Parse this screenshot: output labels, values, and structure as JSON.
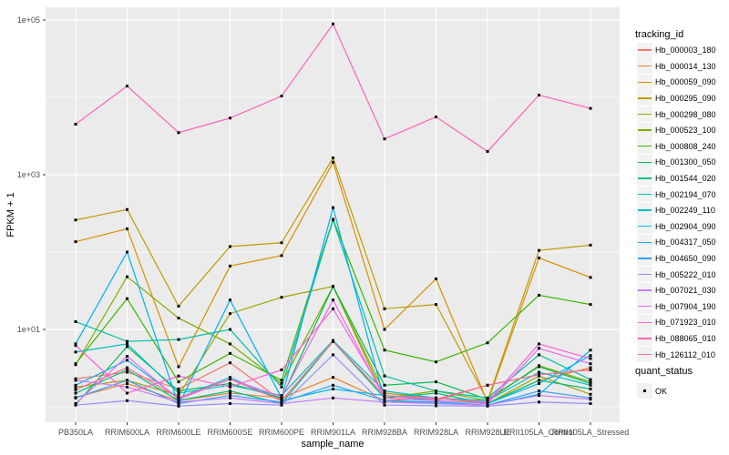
{
  "figure": {
    "background": "#FFFFFF",
    "panel_background": "#EBEBEB",
    "gridline_color": "#FFFFFF",
    "axis_text_color": "#4D4D4D",
    "tick_mark_color": "#333333",
    "axis_title_color": "#000000",
    "legend_key_background": "#F2F2F2",
    "point_color": "#000000"
  },
  "chart_data": {
    "type": "line",
    "title": "",
    "xlabel": "sample_name",
    "ylabel": "FPKM + 1",
    "y_scale": "log10",
    "grid": "on",
    "legend_position": "right",
    "points_style": "black square marker at every vertex",
    "y_ticks": [
      {
        "label": "1e+05",
        "value": 100000
      },
      {
        "label": "1e+03",
        "value": 1000
      },
      {
        "label": "1e+01",
        "value": 10
      }
    ],
    "y_minor_breaks": [
      1,
      100,
      10000
    ],
    "ylim_log10": [
      -0.2,
      5.16
    ],
    "categories": [
      "PB350LA",
      "RRIM600LA",
      "RRIM600LE",
      "RRIM600SE",
      "RRIM600PE",
      "RRIM901LA",
      "RRIM928BA",
      "RRIM928LA",
      "RRIM928LE",
      "RRII105LA_Control",
      "RRII105LA_Stressed"
    ],
    "legend": {
      "title": "tracking_id",
      "secondary_title": "quant_status",
      "secondary_items": [
        {
          "label": "OK",
          "marker": "black-square"
        }
      ]
    },
    "series": [
      {
        "name": "Hb_000003_180",
        "color": "#F8766D",
        "values": [
          2.3,
          2.8,
          1.7,
          3.7,
          1.2,
          7,
          1.3,
          1.2,
          1.9,
          2.6,
          3.0
        ]
      },
      {
        "name": "Hb_000014_130",
        "color": "#EA8331",
        "values": [
          1.32,
          2.0,
          1.2,
          1.5,
          1.3,
          2.4,
          1.2,
          1.3,
          1.1,
          2.2,
          3.2
        ]
      },
      {
        "name": "Hb_000059_090",
        "color": "#D89000",
        "values": [
          136,
          200,
          3.3,
          66,
          90,
          1450,
          10,
          45,
          1.15,
          84,
          47
        ]
      },
      {
        "name": "Hb_000295_090",
        "color": "#C09B00",
        "values": [
          260,
          355,
          20,
          118,
          132,
          1650,
          18.5,
          21,
          1.2,
          105,
          123
        ]
      },
      {
        "name": "Hb_000298_080",
        "color": "#A3A500",
        "values": [
          1.8,
          2.2,
          1.4,
          16,
          26,
          36,
          1.5,
          1.3,
          1.1,
          2.5,
          1.45
        ]
      },
      {
        "name": "Hb_000523_100",
        "color": "#7CAE00",
        "values": [
          3.5,
          48,
          14,
          6.5,
          2.0,
          36,
          1.3,
          1.6,
          1.2,
          3.4,
          2.1
        ]
      },
      {
        "name": "Hb_000808_240",
        "color": "#39B600",
        "values": [
          3.6,
          25,
          2.1,
          4.9,
          2.2,
          265,
          5.4,
          3.8,
          6.7,
          27.7,
          21
        ]
      },
      {
        "name": "Hb_001300_050",
        "color": "#00BB4E",
        "values": [
          1.06,
          6,
          1.6,
          2.0,
          1.3,
          36,
          1.9,
          2.1,
          1.25,
          3.3,
          2.0
        ]
      },
      {
        "name": "Hb_001544_020",
        "color": "#00BF7D",
        "values": [
          1.5,
          3,
          1.2,
          1.6,
          1.1,
          7,
          1.3,
          1.5,
          1.1,
          2.2,
          1.7
        ]
      },
      {
        "name": "Hb_002194_070",
        "color": "#00C1A3",
        "values": [
          12.6,
          7,
          7.4,
          10,
          1.8,
          260,
          2.5,
          1.6,
          1.3,
          4.7,
          2.25
        ]
      },
      {
        "name": "Hb_002249_110",
        "color": "#00BFC4",
        "values": [
          5.1,
          6.5,
          1.5,
          1.9,
          1.4,
          7.2,
          1.6,
          1.3,
          1.2,
          2.8,
          1.9
        ]
      },
      {
        "name": "Hb_002904_090",
        "color": "#00BAE0",
        "values": [
          1.9,
          4,
          1.3,
          2.4,
          1.2,
          1.7,
          1.4,
          1.2,
          1.1,
          2.0,
          4.6
        ]
      },
      {
        "name": "Hb_004317_050",
        "color": "#00B0F6",
        "values": [
          6.5,
          100,
          1.05,
          24,
          1.3,
          375,
          1.2,
          1.15,
          1.05,
          1.45,
          5.4
        ]
      },
      {
        "name": "Hb_004650_090",
        "color": "#35A2FF",
        "values": [
          1.3,
          2.2,
          1.1,
          1.4,
          1.15,
          1.9,
          1.2,
          1.1,
          1.05,
          1.6,
          1.3
        ]
      },
      {
        "name": "Hb_005222_010",
        "color": "#9590FF",
        "values": [
          1.05,
          1.2,
          1.02,
          1.1,
          1.05,
          4.7,
          1.05,
          1.03,
          1.02,
          1.15,
          1.1
        ]
      },
      {
        "name": "Hb_007021_030",
        "color": "#C77CFF",
        "values": [
          2.2,
          1.8,
          1.15,
          1.3,
          1.1,
          1.3,
          1.15,
          1.1,
          1.05,
          1.4,
          1.25
        ]
      },
      {
        "name": "Hb_007904_190",
        "color": "#E76BF3",
        "values": [
          1.1,
          4.5,
          1.25,
          2.27,
          1.35,
          24,
          1.3,
          1.2,
          1.1,
          5.7,
          3.6
        ]
      },
      {
        "name": "Hb_071923_010",
        "color": "#FA62DB",
        "values": [
          6.2,
          1.5,
          2.5,
          1.8,
          3.0,
          18.5,
          1.4,
          1.3,
          1.15,
          6.5,
          4.2
        ]
      },
      {
        "name": "Hb_088065_010",
        "color": "#FF62BC",
        "values": [
          4500,
          14000,
          3500,
          5400,
          10400,
          89000,
          2900,
          5600,
          2000,
          10700,
          7200
        ]
      },
      {
        "name": "Hb_126112_010",
        "color": "#FF6A98",
        "values": [
          1.66,
          3.2,
          1.3,
          2.27,
          1.2,
          7,
          1.4,
          1.25,
          1.9,
          2.6,
          3.0
        ]
      }
    ]
  }
}
